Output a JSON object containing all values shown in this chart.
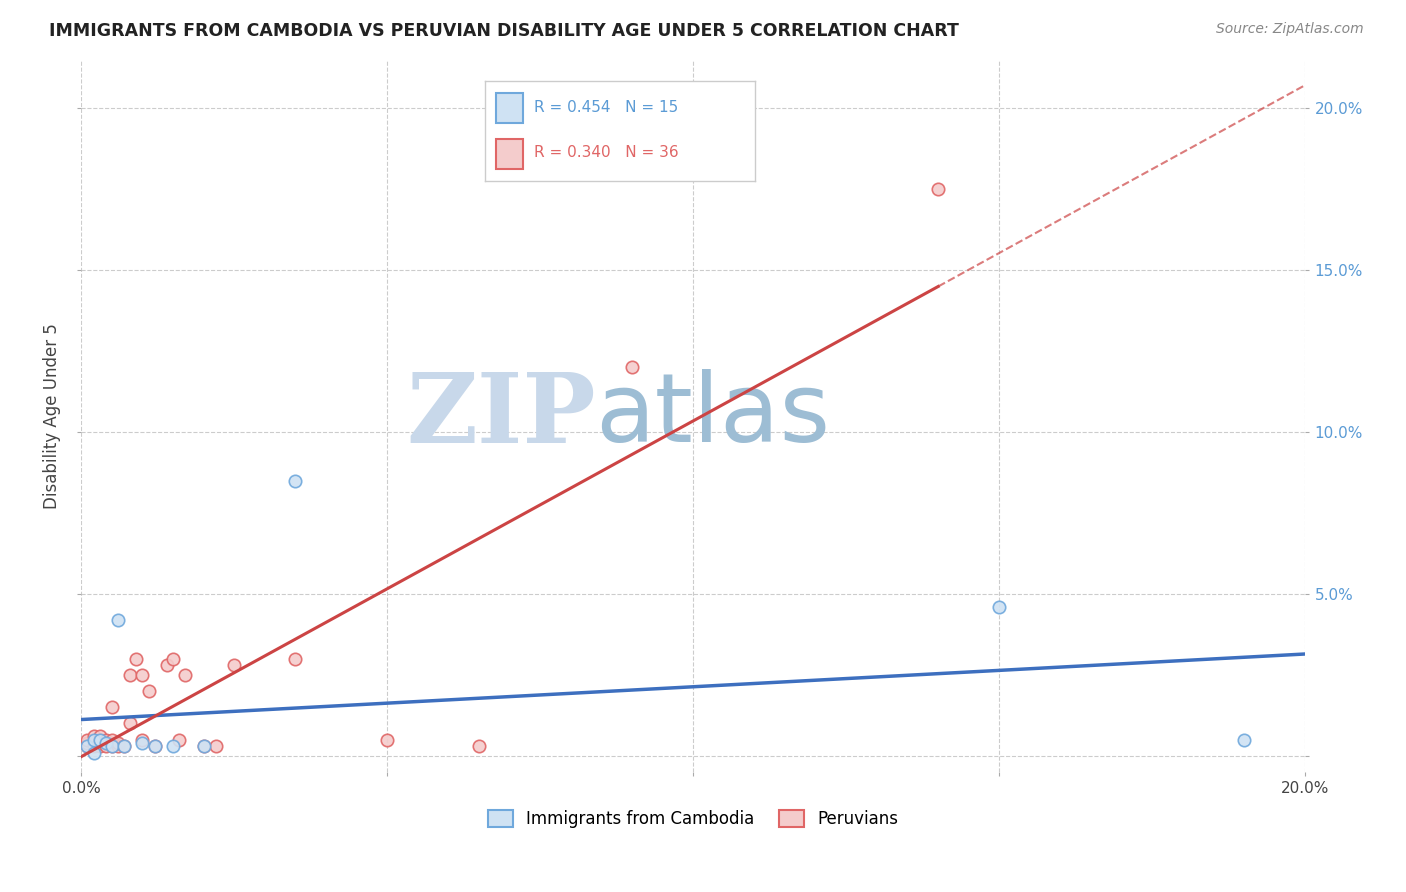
{
  "title": "IMMIGRANTS FROM CAMBODIA VS PERUVIAN DISABILITY AGE UNDER 5 CORRELATION CHART",
  "source": "Source: ZipAtlas.com",
  "ylabel": "Disability Age Under 5",
  "xlim": [
    0.0,
    0.2
  ],
  "ylim": [
    -0.005,
    0.215
  ],
  "xticks": [
    0.0,
    0.05,
    0.1,
    0.15,
    0.2
  ],
  "yticks": [
    0.0,
    0.05,
    0.1,
    0.15,
    0.2
  ],
  "xtick_labels": [
    "0.0%",
    "",
    "",
    "",
    "20.0%"
  ],
  "ytick_labels_right": [
    "",
    "5.0%",
    "10.0%",
    "15.0%",
    "20.0%"
  ],
  "cambodia_R": 0.454,
  "cambodia_N": 15,
  "peru_R": 0.34,
  "peru_N": 36,
  "cambodia_color": "#6fa8dc",
  "cambodia_color_light": "#cfe2f3",
  "peru_color": "#e06666",
  "peru_color_light": "#f4cccc",
  "cambodia_x": [
    0.001,
    0.002,
    0.002,
    0.003,
    0.004,
    0.005,
    0.006,
    0.007,
    0.01,
    0.012,
    0.015,
    0.02,
    0.035,
    0.15,
    0.19
  ],
  "cambodia_y": [
    0.003,
    0.001,
    0.005,
    0.005,
    0.004,
    0.003,
    0.042,
    0.003,
    0.004,
    0.003,
    0.003,
    0.003,
    0.085,
    0.046,
    0.005
  ],
  "peru_x": [
    0.001,
    0.001,
    0.001,
    0.002,
    0.002,
    0.003,
    0.003,
    0.003,
    0.003,
    0.004,
    0.004,
    0.005,
    0.005,
    0.005,
    0.006,
    0.006,
    0.007,
    0.008,
    0.008,
    0.009,
    0.01,
    0.01,
    0.011,
    0.012,
    0.014,
    0.015,
    0.016,
    0.017,
    0.02,
    0.022,
    0.025,
    0.035,
    0.05,
    0.065,
    0.09,
    0.14
  ],
  "peru_y": [
    0.003,
    0.004,
    0.005,
    0.003,
    0.006,
    0.003,
    0.004,
    0.005,
    0.006,
    0.003,
    0.005,
    0.003,
    0.015,
    0.005,
    0.003,
    0.004,
    0.003,
    0.01,
    0.025,
    0.03,
    0.025,
    0.005,
    0.02,
    0.003,
    0.028,
    0.03,
    0.005,
    0.025,
    0.003,
    0.003,
    0.028,
    0.03,
    0.005,
    0.003,
    0.12,
    0.175
  ],
  "background_color": "#ffffff",
  "grid_color": "#cccccc",
  "watermark_zip": "ZIP",
  "watermark_atlas": "atlas",
  "watermark_color_zip": "#c8d8ea",
  "watermark_color_atlas": "#9dbdd4",
  "marker_size": 80,
  "blue_line_color": "#3d6fbf",
  "pink_line_color": "#cc4444",
  "legend_box_color": "#f0f0f0"
}
